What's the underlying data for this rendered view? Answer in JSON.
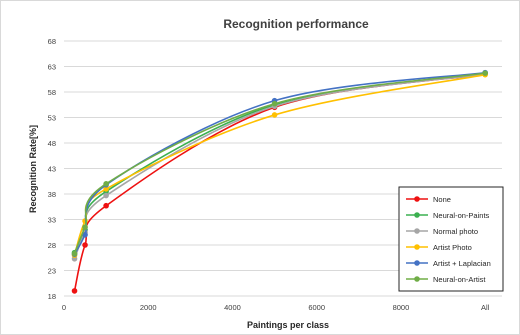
{
  "chart_data": {
    "type": "line",
    "title": "Recognition performance",
    "xlabel": "Paintings per class",
    "ylabel": "Recognition Rate[%]",
    "x_ticks": [
      "0",
      "2000",
      "4000",
      "6000",
      "8000",
      "All"
    ],
    "y_ticks": [
      "18",
      "23",
      "28",
      "33",
      "38",
      "43",
      "48",
      "53",
      "58",
      "63",
      "68"
    ],
    "xlim": [
      0,
      10400
    ],
    "ylim": [
      18,
      68
    ],
    "x_positions": [
      250,
      500,
      1000,
      5000,
      10000
    ],
    "grid": "horizontal",
    "legend_position": "bottom-right",
    "series": [
      {
        "name": "None",
        "color": "#ee1111",
        "values": [
          19.0,
          28.0,
          35.7,
          55.0,
          61.5
        ]
      },
      {
        "name": "Neural-on-Paints",
        "color": "#3cb050",
        "values": [
          26.5,
          31.0,
          38.5,
          55.5,
          61.6
        ]
      },
      {
        "name": "Normal photo",
        "color": "#a6a6a6",
        "values": [
          25.3,
          30.5,
          37.7,
          55.2,
          61.5
        ]
      },
      {
        "name": "Artist Photo",
        "color": "#ffc000",
        "values": [
          26.0,
          32.7,
          39.0,
          53.5,
          61.4
        ]
      },
      {
        "name": "Artist + Laplacian",
        "color": "#4472c4",
        "values": [
          26.2,
          30.0,
          39.8,
          56.3,
          61.8
        ]
      },
      {
        "name": "Neural-on-Artist",
        "color": "#70ad47",
        "values": [
          26.3,
          31.5,
          40.0,
          55.7,
          61.7
        ]
      }
    ]
  }
}
